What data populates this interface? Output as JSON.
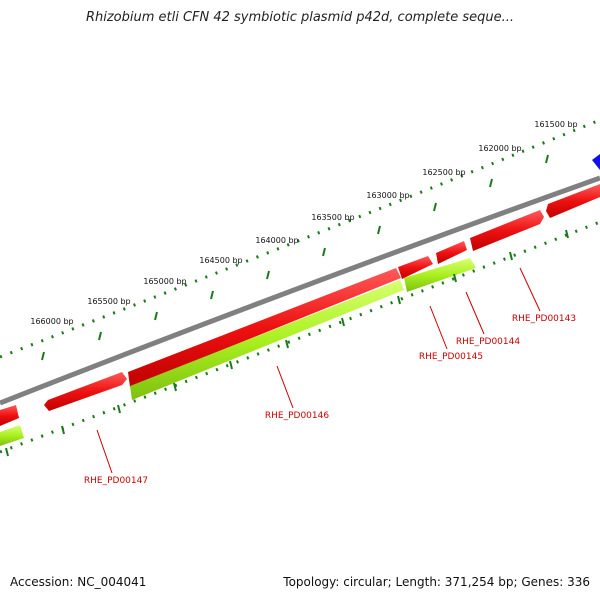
{
  "title": "Rhizobium etli CFN 42 symbiotic plasmid p42d, complete seque...",
  "footer": {
    "accession": "Accession: NC_004041",
    "summary": "Topology: circular; Length: 371,254 bp; Genes: 336"
  },
  "ruler": {
    "ticks": [
      {
        "label": "161500 bp"
      },
      {
        "label": "162000 bp"
      },
      {
        "label": "162500 bp"
      },
      {
        "label": "163000 bp"
      },
      {
        "label": "163500 bp"
      },
      {
        "label": "164000 bp"
      },
      {
        "label": "164500 bp"
      },
      {
        "label": "165000 bp"
      },
      {
        "label": "165500 bp"
      },
      {
        "label": "166000 bp"
      }
    ]
  },
  "genes": [
    {
      "label": "RHE_PD00143"
    },
    {
      "label": "RHE_PD00144"
    },
    {
      "label": "RHE_PD00145"
    },
    {
      "label": "RHE_PD00146"
    },
    {
      "label": "RHE_PD00147"
    }
  ],
  "colors": {
    "backbone": "#808080",
    "cds": "#ee1111",
    "gene": "#aaf020",
    "ticks": "#1a7a1a",
    "label": "#cc0000",
    "other_feature": "#1010ee"
  }
}
